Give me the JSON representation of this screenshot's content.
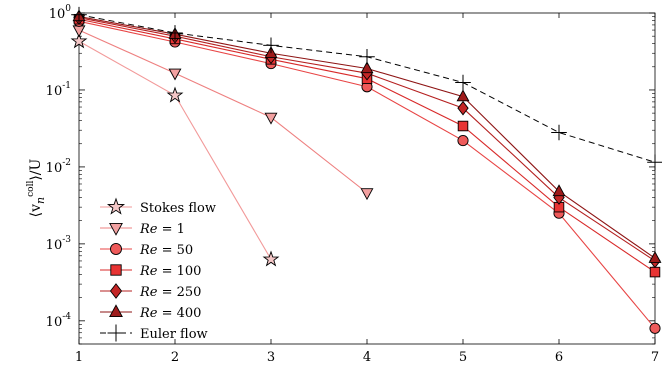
{
  "chart_data": {
    "type": "line",
    "title": "",
    "xlabel": "",
    "ylabel": "⟨v",
    "ylabel_sub": "n",
    "ylabel_sup": "coll",
    "ylabel_tail": "⟩/U",
    "yscale": "log",
    "xlim": [
      1,
      7
    ],
    "ylim": [
      5e-05,
      1
    ],
    "x_ticks": [
      "1",
      "2",
      "3",
      "4",
      "5",
      "6",
      "7"
    ],
    "y_ticks": [
      {
        "base": "10",
        "exp": "-4"
      },
      {
        "base": "10",
        "exp": "-3"
      },
      {
        "base": "10",
        "exp": "-2"
      },
      {
        "base": "10",
        "exp": "-1"
      },
      {
        "base": "10",
        "exp": "0"
      }
    ],
    "grid": false,
    "legend_placement": "bottom-left",
    "series": [
      {
        "name": "Stokes flow",
        "marker": "star",
        "color": "#f4c7c7",
        "line": "#f29a9a",
        "dashed": false,
        "x": [
          1,
          2,
          3
        ],
        "y": [
          0.43,
          0.085,
          0.00063
        ]
      },
      {
        "name_prefix": "Re",
        "name_value": " = 1",
        "marker": "triangle-down",
        "color": "#f2a1a1",
        "line": "#ee8080",
        "dashed": false,
        "x": [
          1,
          2,
          3,
          4
        ],
        "y": [
          0.6,
          0.165,
          0.044,
          0.0046
        ]
      },
      {
        "name_prefix": "Re",
        "name_value": " = 50",
        "marker": "circle",
        "color": "#ee5a5a",
        "line": "#e84545",
        "dashed": false,
        "x": [
          1,
          2,
          3,
          4,
          5,
          6,
          7
        ],
        "y": [
          0.78,
          0.42,
          0.22,
          0.11,
          0.022,
          0.0025,
          8e-05
        ]
      },
      {
        "name_prefix": "Re",
        "name_value": " = 100",
        "marker": "square",
        "color": "#e83434",
        "line": "#d82a2a",
        "dashed": false,
        "x": [
          1,
          2,
          3,
          4,
          5,
          6,
          7
        ],
        "y": [
          0.83,
          0.46,
          0.25,
          0.14,
          0.034,
          0.003,
          0.00043
        ]
      },
      {
        "name_prefix": "Re",
        "name_value": " = 250",
        "marker": "diamond",
        "color": "#c42626",
        "line": "#b52020",
        "dashed": false,
        "x": [
          1,
          2,
          3,
          4,
          5,
          6,
          7
        ],
        "y": [
          0.87,
          0.5,
          0.27,
          0.165,
          0.058,
          0.004,
          0.0006
        ]
      },
      {
        "name_prefix": "Re",
        "name_value": " = 400",
        "marker": "triangle-up",
        "color": "#9e1b1b",
        "line": "#8e1515",
        "dashed": false,
        "x": [
          1,
          2,
          3,
          4,
          5,
          6,
          7
        ],
        "y": [
          0.9,
          0.53,
          0.3,
          0.19,
          0.082,
          0.0048,
          0.00065
        ]
      },
      {
        "name": "Euler flow",
        "marker": "plus",
        "color": "#000000",
        "line": "#000000",
        "dashed": true,
        "x": [
          1,
          2,
          3,
          4,
          5,
          6,
          7
        ],
        "y": [
          0.95,
          0.55,
          0.38,
          0.27,
          0.125,
          0.028,
          0.0115
        ]
      }
    ]
  }
}
